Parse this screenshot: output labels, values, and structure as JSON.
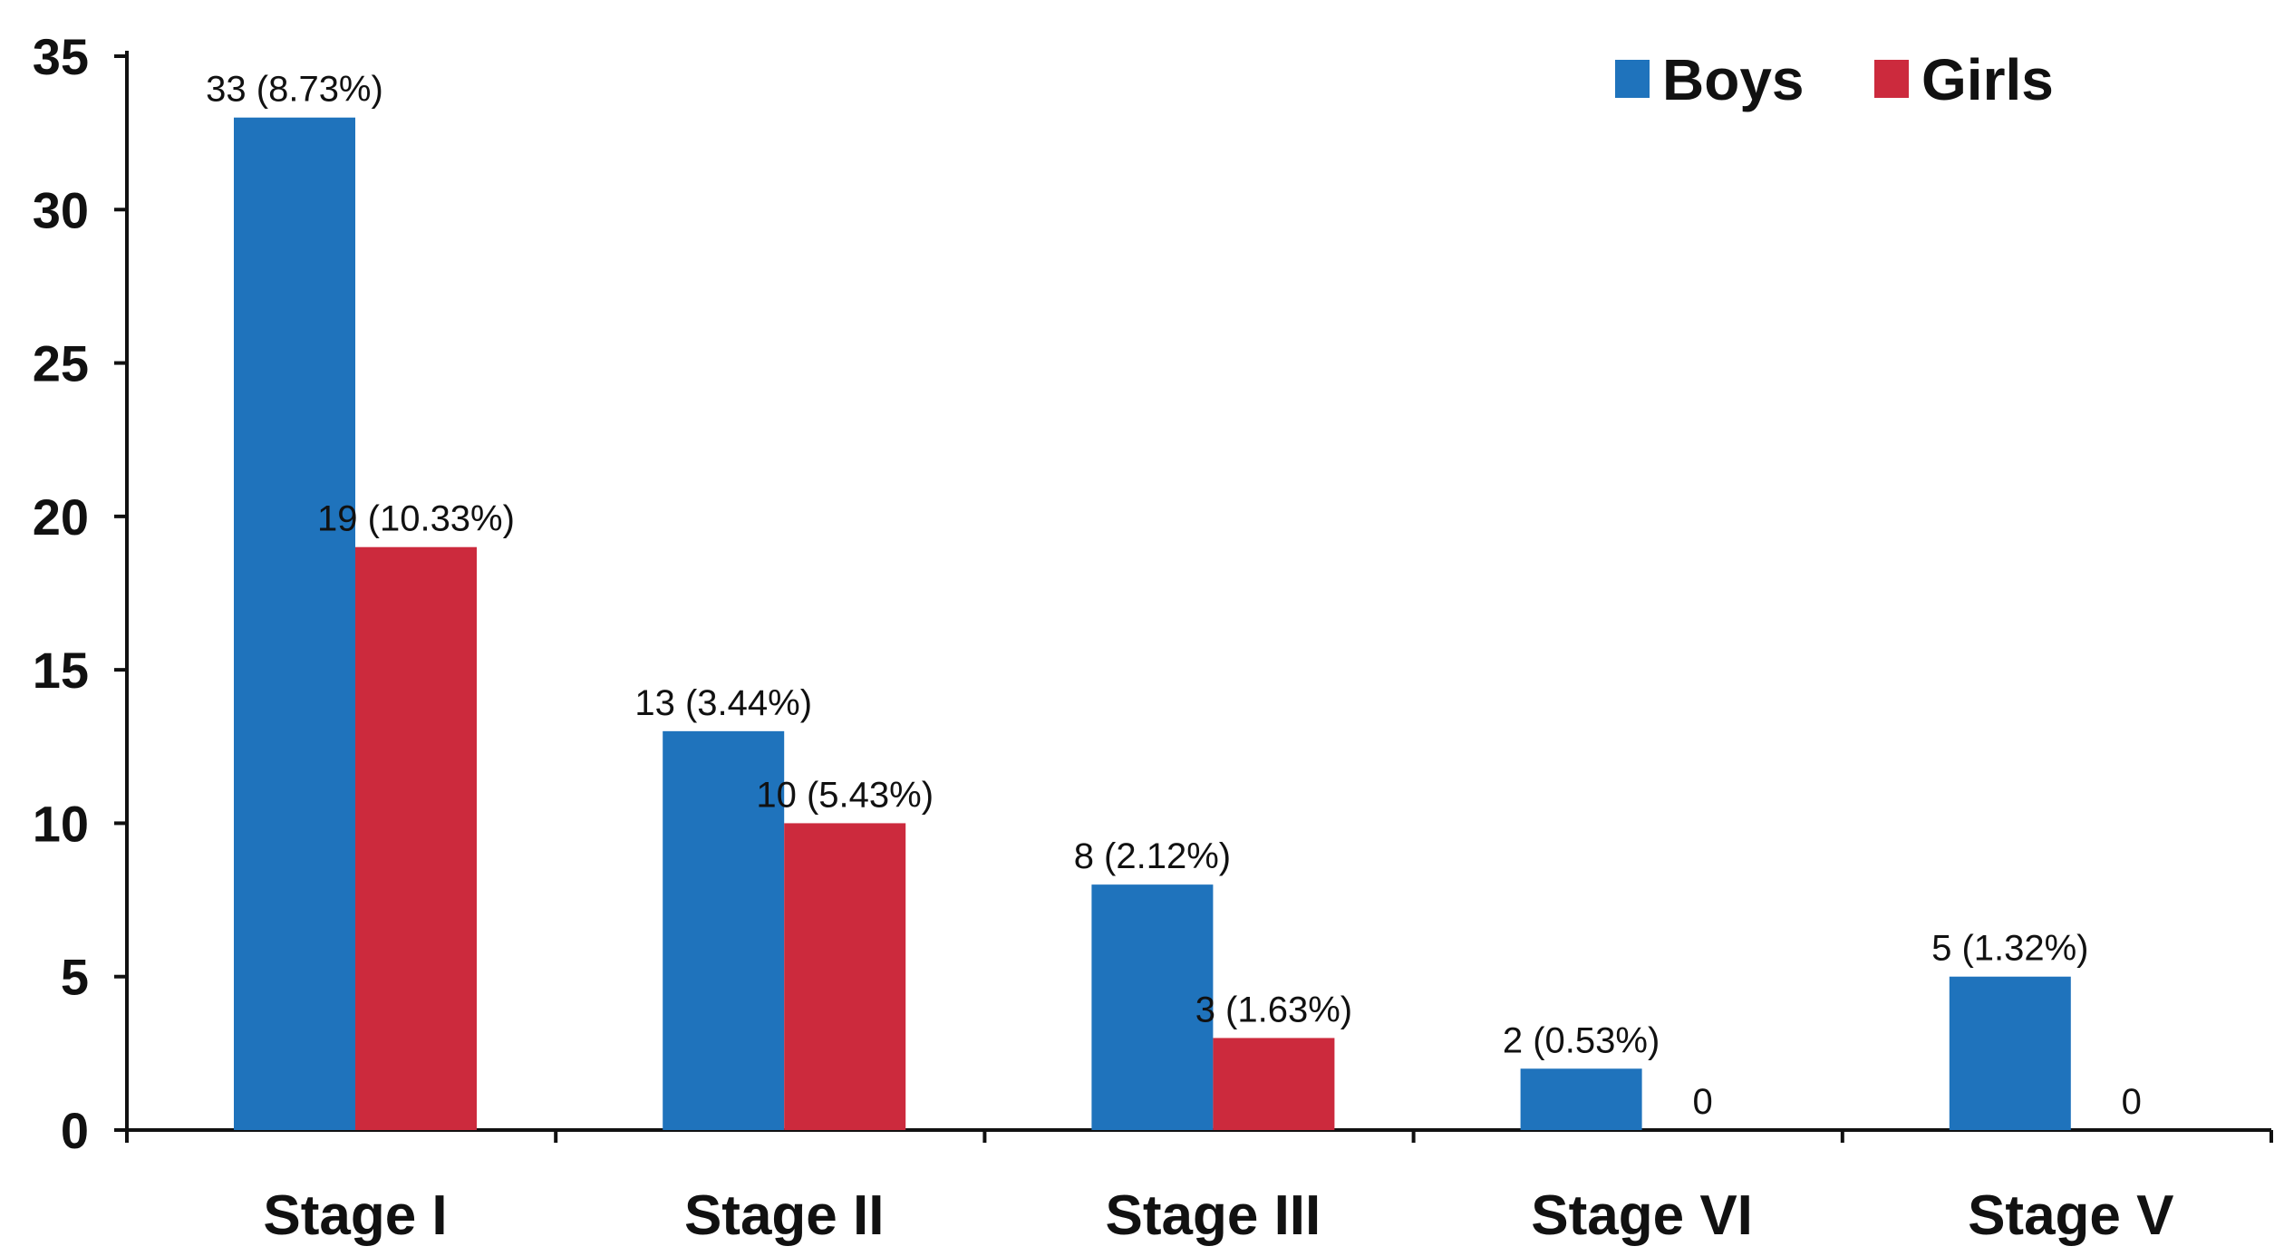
{
  "chart_data": {
    "type": "bar",
    "title": "",
    "xlabel": "",
    "ylabel": "",
    "categories": [
      "Stage I",
      "Stage II",
      "Stage III",
      "Stage VI",
      "Stage V"
    ],
    "series": [
      {
        "name": "Boys",
        "color": "#1f73bc",
        "values": [
          33,
          13,
          8,
          2,
          5
        ],
        "labels": [
          "33 (8.73%)",
          "13 (3.44%)",
          "8 (2.12%)",
          "2 (0.53%)",
          "5 (1.32%)"
        ]
      },
      {
        "name": "Girls",
        "color": "#cc2a3d",
        "values": [
          19,
          10,
          3,
          0,
          0
        ],
        "labels": [
          "19 (10.33%)",
          "10 (5.43%)",
          "3 (1.63%)",
          "0",
          "0"
        ]
      }
    ],
    "yticks": [
      "0",
      "5",
      "10",
      "15",
      "20",
      "25",
      "30",
      "35"
    ],
    "ylim": [
      0,
      35
    ],
    "grid": false,
    "legend_position": "top-right"
  }
}
